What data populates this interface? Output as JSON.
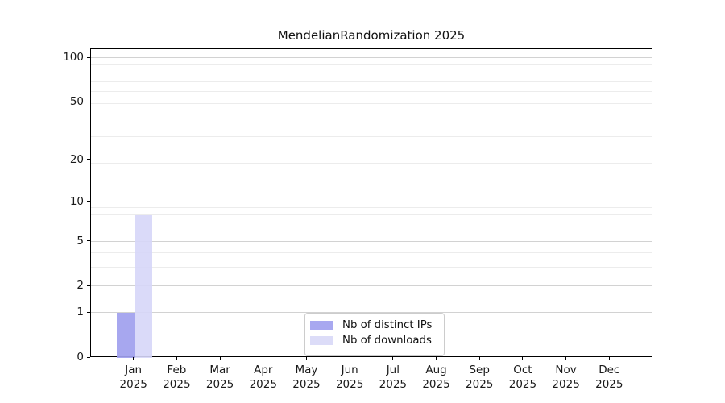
{
  "chart_data": {
    "type": "bar",
    "title": "MendelianRandomization 2025",
    "y_scale": "log10(1+x)",
    "categories": [
      "Jan",
      "Feb",
      "Mar",
      "Apr",
      "May",
      "Jun",
      "Jul",
      "Aug",
      "Sep",
      "Oct",
      "Nov",
      "Dec"
    ],
    "x_tick_year": "2025",
    "series": [
      {
        "name": "Nb of distinct IPs",
        "color": "#a8a8f0",
        "values": [
          1,
          0,
          0,
          0,
          0,
          0,
          0,
          0,
          0,
          0,
          0,
          0
        ]
      },
      {
        "name": "Nb of downloads",
        "color": "#dcdcf8",
        "values": [
          8,
          0,
          0,
          0,
          0,
          0,
          0,
          0,
          0,
          0,
          0,
          0
        ]
      }
    ],
    "yticks": [
      0,
      1,
      2,
      5,
      10,
      20,
      50,
      100
    ],
    "ylim": [
      0,
      115
    ],
    "grid": "horizontal major + log minor",
    "legend_position": "lower center inside plot"
  },
  "colors": {
    "background": "#ffffff",
    "axis": "#000000",
    "grid_major": "#d2d2d2",
    "grid_minor": "#ececec",
    "legend_border": "#cccccc",
    "bar_distinct_ips": "rgba(160,160,238,0.92)",
    "bar_downloads": "rgba(214,214,248,0.9)"
  }
}
